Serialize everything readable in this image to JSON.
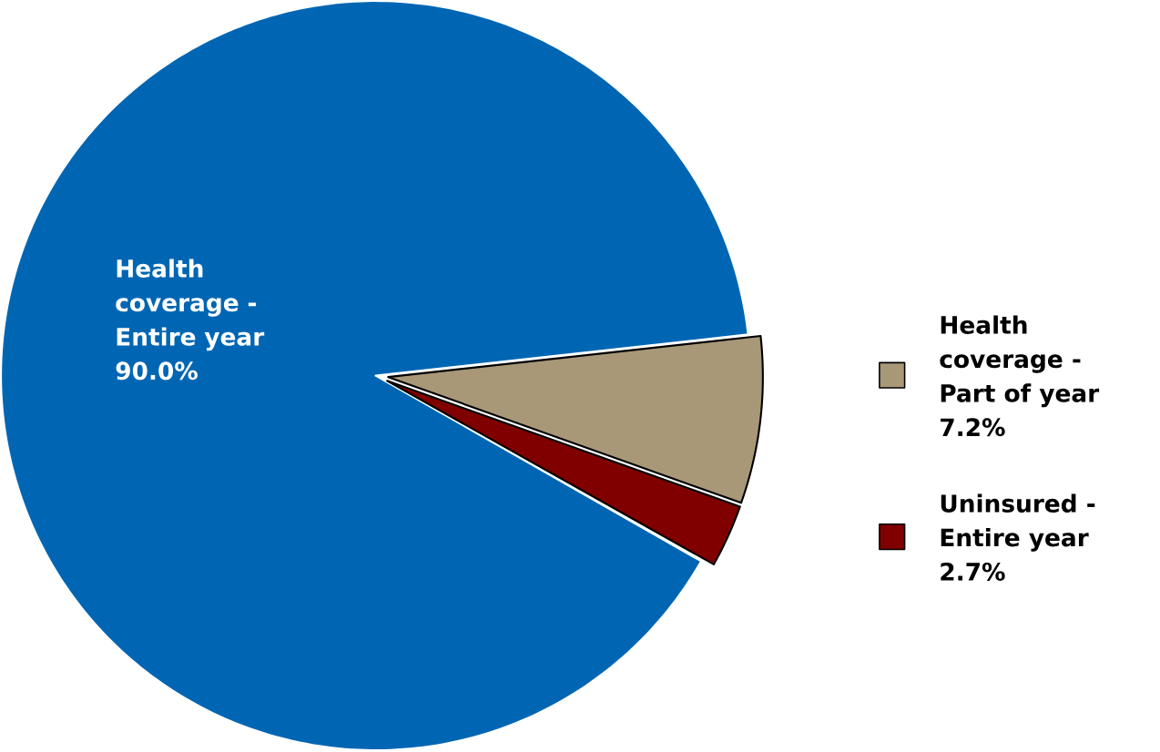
{
  "chart_data": {
    "type": "pie",
    "categories": [
      "Health coverage - Entire year",
      "Health coverage - Part of year",
      "Uninsured - Entire year"
    ],
    "values": [
      90.0,
      7.2,
      2.7
    ],
    "value_labels": [
      "90.0%",
      "7.2%",
      "2.7%"
    ],
    "colors": [
      "#0066b3",
      "#a89878",
      "#800000"
    ],
    "legend": "right"
  }
}
